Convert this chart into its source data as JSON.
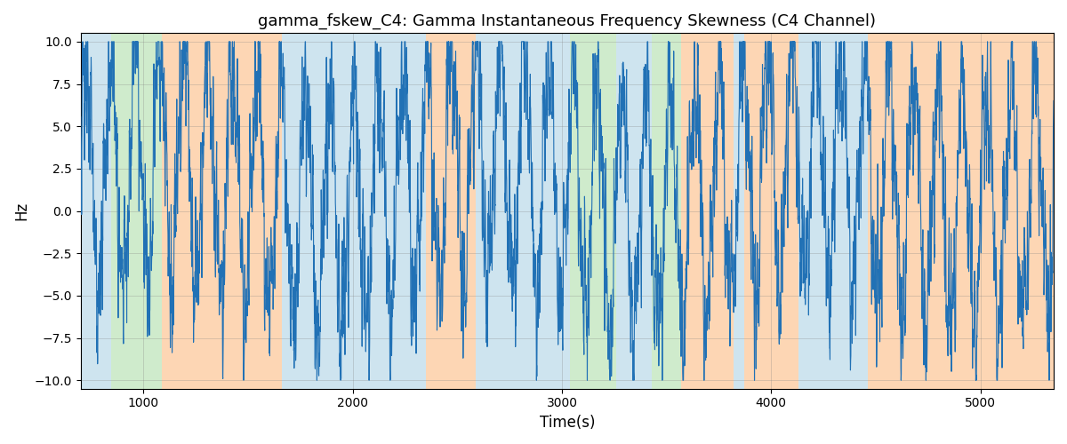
{
  "title": "gamma_fskew_C4: Gamma Instantaneous Frequency Skewness (C4 Channel)",
  "xlabel": "Time(s)",
  "ylabel": "Hz",
  "ylim": [
    -10.5,
    10.5
  ],
  "xlim": [
    700,
    5350
  ],
  "yticks": [
    -10.0,
    -7.5,
    -5.0,
    -2.5,
    0.0,
    2.5,
    5.0,
    7.5,
    10.0
  ],
  "xticks": [
    1000,
    2000,
    3000,
    4000,
    5000
  ],
  "background_color": "#ffffff",
  "line_color": "#2171b5",
  "line_width": 0.8,
  "bands": [
    {
      "start": 700,
      "end": 845,
      "color": "#9ecae1",
      "alpha": 0.5
    },
    {
      "start": 845,
      "end": 1090,
      "color": "#a1d99b",
      "alpha": 0.5
    },
    {
      "start": 1090,
      "end": 1660,
      "color": "#fdae6b",
      "alpha": 0.5
    },
    {
      "start": 1660,
      "end": 2350,
      "color": "#9ecae1",
      "alpha": 0.5
    },
    {
      "start": 2350,
      "end": 2590,
      "color": "#fdae6b",
      "alpha": 0.5
    },
    {
      "start": 2590,
      "end": 2680,
      "color": "#9ecae1",
      "alpha": 0.5
    },
    {
      "start": 2680,
      "end": 3040,
      "color": "#9ecae1",
      "alpha": 0.5
    },
    {
      "start": 3040,
      "end": 3260,
      "color": "#a1d99b",
      "alpha": 0.5
    },
    {
      "start": 3260,
      "end": 3430,
      "color": "#9ecae1",
      "alpha": 0.5
    },
    {
      "start": 3430,
      "end": 3570,
      "color": "#a1d99b",
      "alpha": 0.5
    },
    {
      "start": 3570,
      "end": 3820,
      "color": "#fdae6b",
      "alpha": 0.5
    },
    {
      "start": 3820,
      "end": 3870,
      "color": "#9ecae1",
      "alpha": 0.5
    },
    {
      "start": 3870,
      "end": 4130,
      "color": "#fdae6b",
      "alpha": 0.5
    },
    {
      "start": 4130,
      "end": 4460,
      "color": "#9ecae1",
      "alpha": 0.5
    },
    {
      "start": 4460,
      "end": 4710,
      "color": "#fdae6b",
      "alpha": 0.5
    },
    {
      "start": 4710,
      "end": 5350,
      "color": "#fdae6b",
      "alpha": 0.5
    }
  ]
}
